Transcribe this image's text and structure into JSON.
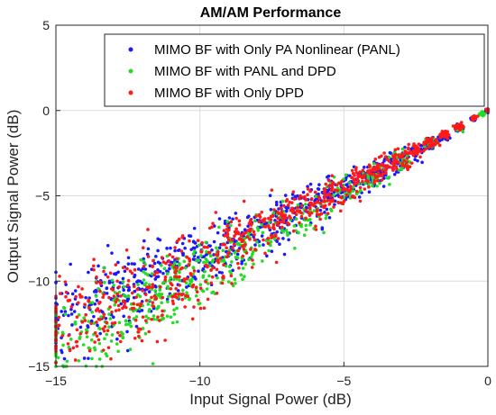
{
  "chart_data": {
    "type": "scatter",
    "title": "AM/AM Performance",
    "xlabel": "Input Signal Power (dB)",
    "ylabel": "Output Signal Power (dB)",
    "xlim": [
      -15,
      0
    ],
    "ylim": [
      -15,
      5
    ],
    "x_ticks": [
      -15,
      -10,
      -5,
      0
    ],
    "y_ticks": [
      -15,
      -10,
      -5,
      0,
      5
    ],
    "x_tick_labels": [
      "−15",
      "−10",
      "−5",
      "0"
    ],
    "y_tick_labels": [
      "−15",
      "−10",
      "−5",
      "0",
      "5"
    ],
    "grid": true,
    "legend_position": "top-right",
    "series": [
      {
        "name": "MIMO BF with Only PA Nonlinear (PANL)",
        "color": "#1a1aff",
        "sample_points": [
          [
            -15.0,
            -13.2
          ],
          [
            -14.6,
            -11.8
          ],
          [
            -14.2,
            -12.6
          ],
          [
            -13.8,
            -10.6
          ],
          [
            -13.5,
            -11.4
          ],
          [
            -13.0,
            -10.0
          ],
          [
            -12.6,
            -11.2
          ],
          [
            -12.2,
            -9.8
          ],
          [
            -11.8,
            -10.4
          ],
          [
            -11.4,
            -8.9
          ],
          [
            -11.0,
            -9.6
          ],
          [
            -10.6,
            -9.0
          ],
          [
            -10.0,
            -8.6
          ],
          [
            -9.5,
            -8.1
          ],
          [
            -9.0,
            -7.9
          ],
          [
            -8.5,
            -7.6
          ],
          [
            -8.0,
            -7.0
          ],
          [
            -7.5,
            -6.6
          ],
          [
            -7.0,
            -6.2
          ],
          [
            -6.5,
            -5.8
          ],
          [
            -6.0,
            -5.4
          ],
          [
            -5.5,
            -5.0
          ],
          [
            -5.0,
            -4.6
          ],
          [
            -4.5,
            -4.1
          ],
          [
            -4.0,
            -3.7
          ],
          [
            -3.5,
            -3.3
          ],
          [
            -3.0,
            -2.9
          ],
          [
            -2.5,
            -2.4
          ],
          [
            -2.0,
            -1.95
          ],
          [
            -1.5,
            -1.5
          ],
          [
            -1.0,
            -1.0
          ],
          [
            -0.5,
            -0.5
          ],
          [
            0.0,
            0.0
          ]
        ]
      },
      {
        "name": "MIMO BF with PANL and DPD",
        "color": "#22dd22",
        "sample_points": [
          [
            -14.8,
            -14.2
          ],
          [
            -14.4,
            -13.0
          ],
          [
            -14.0,
            -13.6
          ],
          [
            -13.6,
            -12.6
          ],
          [
            -13.2,
            -12.0
          ],
          [
            -12.8,
            -12.8
          ],
          [
            -12.4,
            -11.4
          ],
          [
            -12.0,
            -11.6
          ],
          [
            -11.6,
            -10.8
          ],
          [
            -11.2,
            -10.5
          ],
          [
            -10.8,
            -10.2
          ],
          [
            -10.4,
            -9.7
          ],
          [
            -10.0,
            -9.4
          ],
          [
            -9.5,
            -9.0
          ],
          [
            -9.0,
            -8.5
          ],
          [
            -8.5,
            -8.0
          ],
          [
            -8.0,
            -7.6
          ],
          [
            -7.0,
            -6.7
          ],
          [
            -6.0,
            -5.8
          ],
          [
            -5.0,
            -4.8
          ],
          [
            -4.0,
            -3.9
          ],
          [
            -3.0,
            -2.9
          ],
          [
            -2.0,
            -1.95
          ],
          [
            -1.0,
            -1.0
          ],
          [
            -0.2,
            -0.2
          ]
        ]
      },
      {
        "name": "MIMO BF with Only DPD",
        "color": "#ff1a1a",
        "sample_points": [
          [
            -15.0,
            -12.2
          ],
          [
            -14.6,
            -13.4
          ],
          [
            -14.2,
            -11.6
          ],
          [
            -13.8,
            -12.9
          ],
          [
            -13.4,
            -10.9
          ],
          [
            -13.0,
            -12.2
          ],
          [
            -12.6,
            -10.6
          ],
          [
            -12.2,
            -11.5
          ],
          [
            -11.8,
            -9.8
          ],
          [
            -11.4,
            -10.9
          ],
          [
            -11.0,
            -9.3
          ],
          [
            -10.6,
            -10.2
          ],
          [
            -10.0,
            -8.9
          ],
          [
            -9.5,
            -8.3
          ],
          [
            -9.0,
            -7.9
          ],
          [
            -8.5,
            -7.3
          ],
          [
            -8.0,
            -7.1
          ],
          [
            -7.5,
            -6.5
          ],
          [
            -7.0,
            -6.3
          ],
          [
            -6.5,
            -5.7
          ],
          [
            -6.0,
            -5.5
          ],
          [
            -5.5,
            -4.9
          ],
          [
            -5.0,
            -4.6
          ],
          [
            -4.5,
            -4.0
          ],
          [
            -4.0,
            -3.7
          ],
          [
            -3.5,
            -3.2
          ],
          [
            -3.0,
            -2.8
          ],
          [
            -2.5,
            -2.3
          ],
          [
            -2.0,
            -1.9
          ],
          [
            -1.5,
            -1.4
          ],
          [
            -1.0,
            -0.95
          ],
          [
            -0.5,
            -0.45
          ],
          [
            0.0,
            0.0
          ]
        ]
      }
    ]
  }
}
